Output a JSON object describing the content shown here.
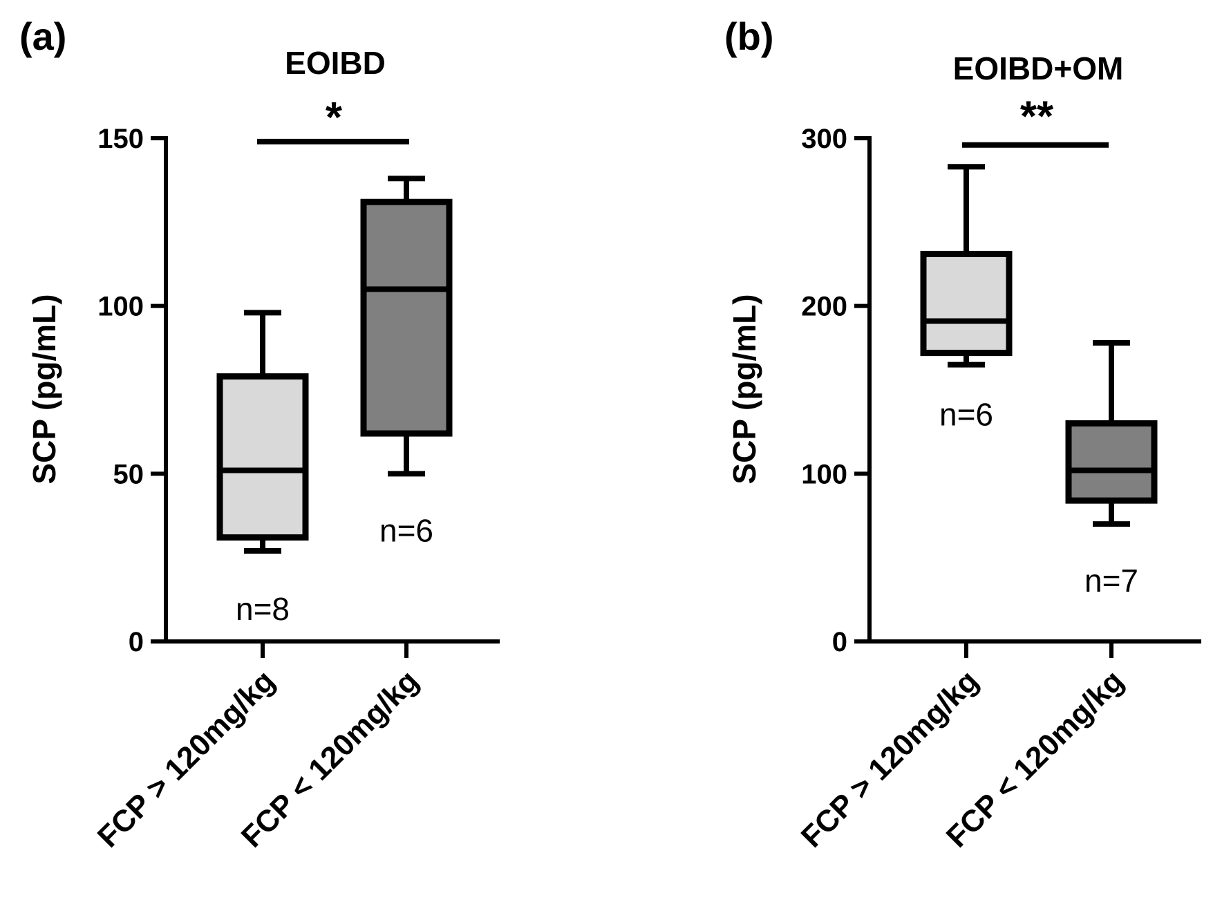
{
  "chart_data": [
    {
      "type": "box",
      "panel_label": "(a)",
      "title": "EOIBD",
      "ylabel": "SCP (pg/mL)",
      "ylim": [
        0,
        150
      ],
      "yticks": [
        0,
        50,
        100,
        150
      ],
      "categories": [
        "FCP > 120mg/kg",
        "FCP < 120mg/kg"
      ],
      "boxes": [
        {
          "name": "FCP > 120mg/kg",
          "min": 27,
          "q1": 31,
          "median": 51,
          "q3": 79,
          "max": 98,
          "n_label": "n=8",
          "color": "#d9d9d9"
        },
        {
          "name": "FCP < 120mg/kg",
          "min": 50,
          "q1": 62,
          "median": 105,
          "q3": 131,
          "max": 138,
          "n_label": "n=6",
          "color": "#808080"
        }
      ],
      "significance": {
        "label": "*",
        "value": 149
      }
    },
    {
      "type": "box",
      "panel_label": "(b)",
      "title": "EOIBD+OM",
      "ylabel": "SCP (pg/mL)",
      "ylim": [
        0,
        300
      ],
      "yticks": [
        0,
        100,
        200,
        300
      ],
      "categories": [
        "FCP > 120mg/kg",
        "FCP < 120mg/kg"
      ],
      "boxes": [
        {
          "name": "FCP > 120mg/kg",
          "min": 165,
          "q1": 172,
          "median": 191,
          "q3": 231,
          "max": 283,
          "n_label": "n=6",
          "color": "#d9d9d9"
        },
        {
          "name": "FCP < 120mg/kg",
          "min": 70,
          "q1": 84,
          "median": 102,
          "q3": 130,
          "max": 178,
          "n_label": "n=7",
          "color": "#808080"
        }
      ],
      "significance": {
        "label": "**",
        "value": 296
      }
    }
  ]
}
